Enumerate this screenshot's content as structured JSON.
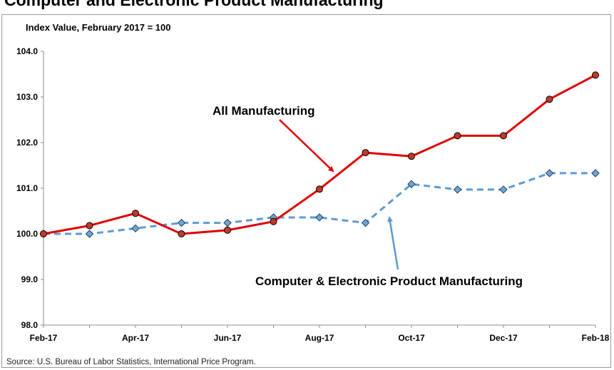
{
  "title": "Computer and Electronic Product Manufacturing",
  "source": "Source: U.S. Bureau of Labor Statistics, International Price Program.",
  "chart_data": {
    "type": "line",
    "ylabel": "Index Value, February 2017 = 100",
    "xlabel": "",
    "ylim": [
      98.0,
      104.0
    ],
    "yticks": [
      "98.0",
      "99.0",
      "100.0",
      "101.0",
      "102.0",
      "103.0",
      "104.0"
    ],
    "x": [
      "Feb-17",
      "Mar-17",
      "Apr-17",
      "May-17",
      "Jun-17",
      "Jul-17",
      "Aug-17",
      "Sep-17",
      "Oct-17",
      "Nov-17",
      "Dec-17",
      "Jan-18",
      "Feb-18"
    ],
    "xtick_labels": [
      "Feb-17",
      "",
      "Apr-17",
      "",
      "Jun-17",
      "",
      "Aug-17",
      "",
      "Oct-17",
      "",
      "Dec-17",
      "",
      "Feb-18"
    ],
    "grid": false,
    "series": [
      {
        "name": "All Manufacturing",
        "color": "#e00000",
        "line_style": "solid",
        "marker": "circle",
        "values": [
          100.0,
          100.18,
          100.45,
          100.0,
          100.08,
          100.27,
          100.98,
          101.78,
          101.7,
          102.15,
          102.15,
          102.95,
          103.48
        ]
      },
      {
        "name": "Computer & Electronic Product Manufacturing",
        "color": "#5b9bd5",
        "line_style": "dashed",
        "marker": "diamond",
        "values": [
          100.0,
          100.0,
          100.12,
          100.24,
          100.24,
          100.36,
          100.36,
          100.24,
          101.09,
          100.97,
          100.97,
          101.33,
          101.33
        ]
      }
    ]
  }
}
